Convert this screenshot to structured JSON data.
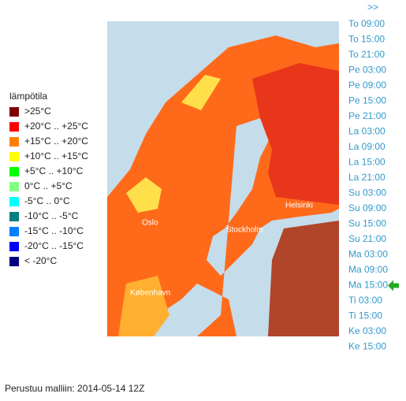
{
  "legend": {
    "title": "lämpötila",
    "items": [
      {
        "label": ">25°C",
        "color": "#800000"
      },
      {
        "label": "+20°C .. +25°C",
        "color": "#ff0000"
      },
      {
        "label": "+15°C .. +20°C",
        "color": "#ff8000"
      },
      {
        "label": "+10°C .. +15°C",
        "color": "#ffff00"
      },
      {
        "label": "+5°C .. +10°C",
        "color": "#00ff00"
      },
      {
        "label": "0°C .. +5°C",
        "color": "#80ff80"
      },
      {
        "label": "-5°C .. 0°C",
        "color": "#00ffff"
      },
      {
        "label": "-10°C .. -5°C",
        "color": "#008080"
      },
      {
        "label": "-15°C .. -10°C",
        "color": "#0080ff"
      },
      {
        "label": "-20°C .. -15°C",
        "color": "#0000ff"
      },
      {
        "label": "< -20°C",
        "color": "#000080"
      }
    ]
  },
  "timeline": {
    "next": ">>",
    "times": [
      "To 09:00",
      "To 15:00",
      "To 21:00",
      "Pe 03:00",
      "Pe 09:00",
      "Pe 15:00",
      "Pe 21:00",
      "La 03:00",
      "La 09:00",
      "La 15:00",
      "La 21:00",
      "Su 03:00",
      "Su 09:00",
      "Su 15:00",
      "Su 21:00",
      "Ma 03:00",
      "Ma 09:00",
      "Ma 15:00",
      "Ti 03:00",
      "Ti 15:00",
      "Ke 03:00",
      "Ke 15:00"
    ],
    "selected_index": 17
  },
  "map": {
    "labels": [
      "Oslo",
      "Stockholm",
      "Helsinki",
      "København"
    ]
  },
  "footer": "Perustuu malliin: 2014-05-14 12Z"
}
